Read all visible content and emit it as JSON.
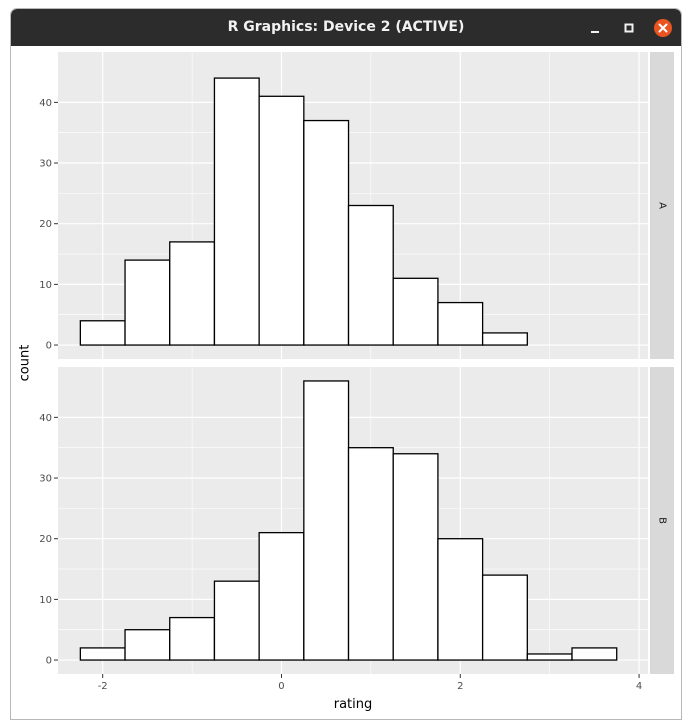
{
  "window": {
    "title": "R Graphics: Device 2 (ACTIVE)",
    "colors": {
      "titlebar": "#2c2c2c",
      "close": "#e95420",
      "panel": "#ebebeb",
      "strip": "#d9d9d9"
    },
    "icons": {
      "minimize": "minimize-icon",
      "maximize": "maximize-icon",
      "close": "close-icon"
    }
  },
  "chart_data": {
    "type": "bar",
    "title": "",
    "xlabel": "rating",
    "ylabel": "count",
    "xlim": [
      -2.5,
      4.1
    ],
    "ylim": [
      -2.3,
      48.3
    ],
    "x_ticks": [
      "-2",
      "0",
      "2",
      "4"
    ],
    "x_tick_values": [
      -2,
      0,
      2,
      4
    ],
    "y_ticks": [
      "0",
      "10",
      "20",
      "30",
      "40"
    ],
    "y_tick_values": [
      0,
      10,
      20,
      30,
      40
    ],
    "grid": true,
    "bin_edges": [
      -2.25,
      -1.75,
      -1.25,
      -0.75,
      -0.25,
      0.25,
      0.75,
      1.25,
      1.75,
      2.25,
      2.75,
      3.25,
      3.75
    ],
    "facets": [
      {
        "strip": "A",
        "counts": [
          4,
          14,
          17,
          44,
          41,
          37,
          23,
          11,
          7,
          2,
          0,
          0
        ]
      },
      {
        "strip": "B",
        "counts": [
          2,
          5,
          7,
          13,
          21,
          46,
          35,
          34,
          20,
          14,
          1,
          2
        ]
      }
    ]
  }
}
